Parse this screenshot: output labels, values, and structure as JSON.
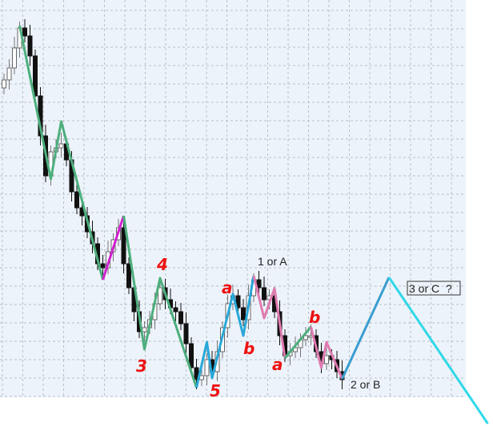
{
  "chart_data": {
    "type": "candlestick",
    "title": "",
    "xlabel": "",
    "ylabel": "",
    "grid": true,
    "background": "#edf3fa",
    "closes": [
      400,
      415,
      440,
      465,
      455,
      430,
      380,
      330,
      280,
      310,
      315,
      320,
      300,
      260,
      240,
      230,
      210,
      195,
      170,
      165,
      185,
      200,
      215,
      170,
      140,
      110,
      85,
      90,
      100,
      120,
      140,
      125,
      115,
      110,
      95,
      70,
      40,
      25,
      30,
      50,
      35,
      60,
      90,
      120,
      130,
      115,
      100,
      130,
      150,
      140,
      125,
      130,
      110,
      80,
      55,
      60,
      65,
      75,
      80,
      80,
      60,
      45,
      55,
      50,
      35,
      25
    ],
    "wave_lines": [
      {
        "color": "#4caf7d",
        "points": [
          [
            3,
            468
          ],
          [
            9,
            276
          ],
          [
            11,
            348
          ],
          [
            19,
            150
          ]
        ]
      },
      {
        "color": "#d020d0",
        "points": [
          [
            19,
            150
          ],
          [
            23,
            230
          ]
        ]
      },
      {
        "color": "#4caf7d",
        "points": [
          [
            23,
            230
          ],
          [
            27,
            63
          ],
          [
            30,
            152
          ],
          [
            37,
            15
          ]
        ]
      },
      {
        "color": "#29a8d8",
        "points": [
          [
            37,
            15
          ],
          [
            39,
            72
          ],
          [
            40,
            27
          ],
          [
            44,
            132
          ],
          [
            46,
            80
          ],
          [
            48,
            155
          ]
        ]
      },
      {
        "color": "#e07ab0",
        "points": [
          [
            48,
            155
          ],
          [
            50,
            102
          ],
          [
            52,
            139
          ],
          [
            54,
            52
          ]
        ]
      },
      {
        "color": "#4caf7d",
        "points": [
          [
            54,
            52
          ],
          [
            59,
            91
          ]
        ]
      },
      {
        "color": "#e07ab0",
        "points": [
          [
            59,
            91
          ],
          [
            61,
            40
          ],
          [
            62,
            72
          ],
          [
            65,
            26
          ]
        ]
      },
      {
        "color": "#3a9ed0",
        "points": [
          [
            65,
            26
          ],
          [
            74,
            153
          ]
        ]
      },
      {
        "color": "#30d8e8",
        "points": [
          [
            74,
            153
          ],
          [
            93,
            -30
          ]
        ]
      }
    ],
    "wave_labels": [
      {
        "text": "3",
        "style": "red"
      },
      {
        "text": "4",
        "style": "red"
      },
      {
        "text": "5",
        "style": "red"
      },
      {
        "text": "a",
        "style": "red"
      },
      {
        "text": "b",
        "style": "red"
      },
      {
        "text": "a",
        "style": "red"
      },
      {
        "text": "b",
        "style": "red"
      }
    ],
    "annotations": {
      "wave1": "1 or A",
      "wave2": "2 or B",
      "wave3": "3 or C  ?"
    }
  }
}
